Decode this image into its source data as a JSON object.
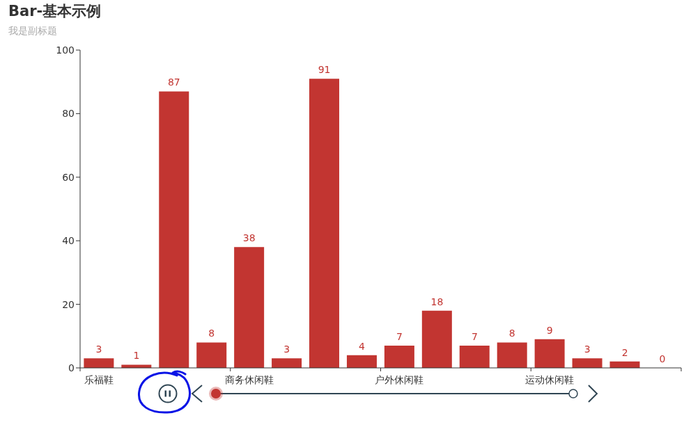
{
  "chart_data": {
    "type": "bar",
    "title": "Bar-基本示例",
    "subtitle": "我是副标题",
    "categories": [
      "乐福鞋",
      null,
      null,
      null,
      "商务休闲鞋",
      null,
      null,
      null,
      "户外休闲鞋",
      null,
      null,
      null,
      "运动休闲鞋",
      null,
      null,
      null
    ],
    "values": [
      3,
      1,
      87,
      8,
      38,
      3,
      91,
      4,
      7,
      18,
      7,
      8,
      9,
      3,
      2,
      0
    ],
    "color": "#c23531",
    "ylim": [
      0,
      100
    ],
    "yticks": [
      0,
      20,
      40,
      60,
      80,
      100
    ],
    "data_labels": true
  }
}
